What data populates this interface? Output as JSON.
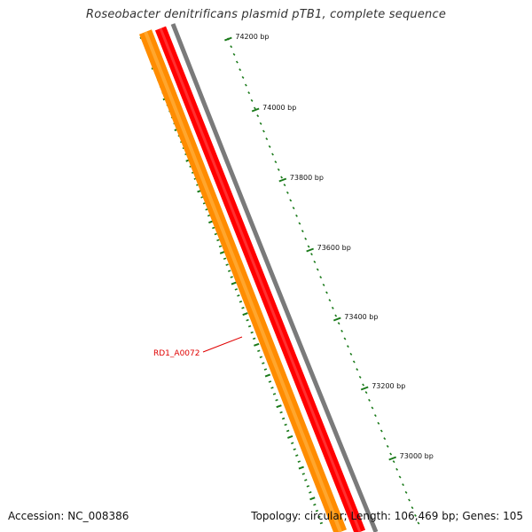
{
  "title": "Roseobacter denitrificans plasmid pTB1, complete sequence",
  "accession_text": "Accession: NC_008386",
  "summary_text": "Topology: circular; Length: 106,469 bp; Genes: 105",
  "colors": {
    "backbone": "#7a7a7a",
    "forward_gene": "#ff0000",
    "reverse_gene": "#ff8c00",
    "ticks": "#1a7a1a",
    "gene_label": "#e00000"
  },
  "scale_ticks": [
    {
      "label": "74200 bp"
    },
    {
      "label": "74000 bp"
    },
    {
      "label": "73800 bp"
    },
    {
      "label": "73600 bp"
    },
    {
      "label": "73400 bp"
    },
    {
      "label": "73200 bp"
    },
    {
      "label": "73000 bp"
    }
  ],
  "gene_label": "RD1_A0072"
}
